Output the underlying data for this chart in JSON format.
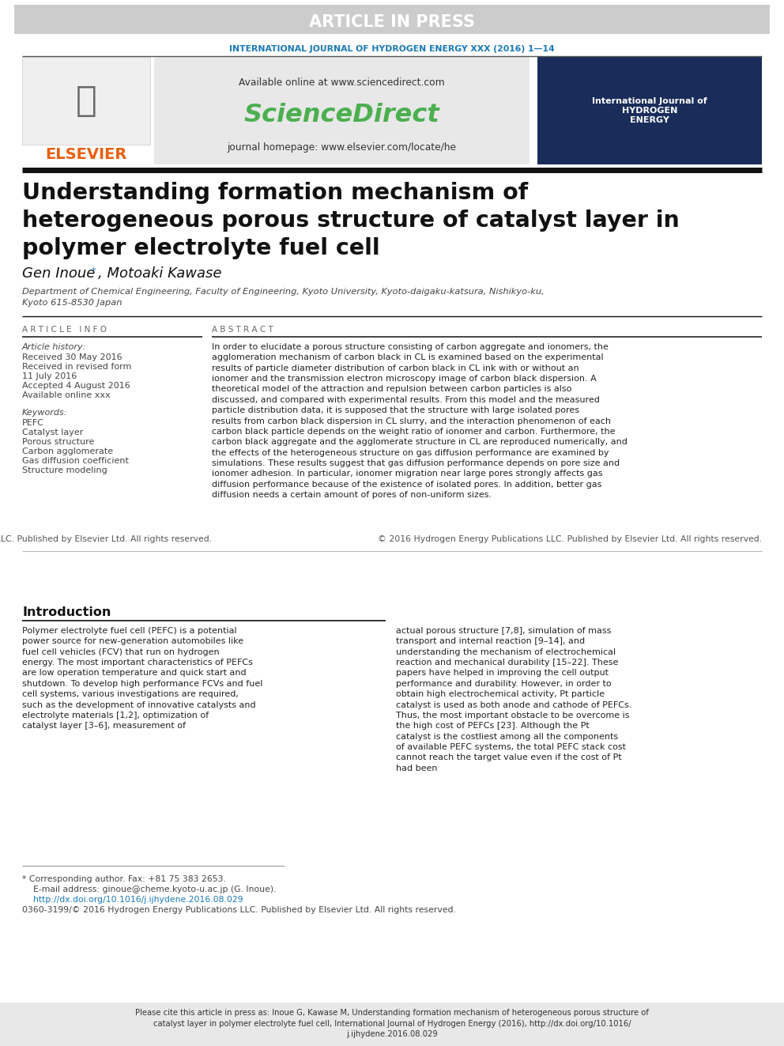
{
  "article_in_press_bg": "#cccccc",
  "article_in_press_text": "ARTICLE IN PRESS",
  "journal_name_text": "INTERNATIONAL JOURNAL OF HYDROGEN ENERGY XXX (2016) 1—14",
  "journal_name_color": "#1a7ab5",
  "available_online_text": "Available online at www.sciencedirect.com",
  "sciencedirect_text": "ScienceDirect",
  "sciencedirect_color": "#4caf50",
  "journal_homepage_text": "journal homepage: www.elsevier.com/locate/he",
  "elsevier_text": "ELSEVIER",
  "elsevier_color": "#e86010",
  "paper_title": "Understanding formation mechanism of\nheterogeneous porous structure of catalyst layer in\npolymer electrolyte fuel cell",
  "author_first": "Gen Inoue",
  "author_rest": ", Motoaki Kawase",
  "affiliation": "Department of Chemical Engineering, Faculty of Engineering, Kyoto University, Kyoto-daigaku-katsura, Nishikyo-ku,\nKyoto 615-8530 Japan",
  "article_info_title": "ARTICLE INFO",
  "abstract_title": "ABSTRACT",
  "article_history_label": "Article history:",
  "received_text": "Received 30 May 2016",
  "received_revised1": "Received in revised form",
  "received_revised2": "11 July 2016",
  "accepted_text": "Accepted 4 August 2016",
  "available_online_xxx": "Available online xxx",
  "keywords_title": "Keywords:",
  "keywords": [
    "PEFC",
    "Catalyst layer",
    "Porous structure",
    "Carbon agglomerate",
    "Gas diffusion coefficient",
    "Structure modeling"
  ],
  "abstract_text": "In order to elucidate a porous structure consisting of carbon aggregate and ionomers, the agglomeration mechanism of carbon black in CL is examined based on the experimental results of particle diameter distribution of carbon black in CL ink with or without an ionomer and the transmission electron microscopy image of carbon black dispersion. A theoretical model of the attraction and repulsion between carbon particles is also discussed, and compared with experimental results. From this model and the measured particle distribution data, it is supposed that the structure with large isolated pores results from carbon black dispersion in CL slurry, and the interaction phenomenon of each carbon black particle depends on the weight ratio of ionomer and carbon. Furthermore, the carbon black aggregate and the agglomerate structure in CL are reproduced numerically, and the effects of the heterogeneous structure on gas diffusion performance are examined by simulations. These results suggest that gas diffusion performance depends on pore size and ionomer adhesion. In particular, ionomer migration near large pores strongly affects gas diffusion performance because of the existence of isolated pores. In addition, better gas diffusion needs a certain amount of pores of non-uniform sizes.",
  "copyright_text": "© 2016 Hydrogen Energy Publications LLC. Published by Elsevier Ltd. All rights reserved.",
  "intro_title": "Introduction",
  "intro_text_left": "Polymer electrolyte fuel cell (PEFC) is a potential power source for new-generation automobiles like fuel cell vehicles (FCV) that run on hydrogen energy. The most important characteristics of PEFCs are low operation temperature and quick start and shutdown. To develop high performance FCVs and fuel cell systems, various investigations are required, such as the development of innovative catalysts and electrolyte materials [1,2], optimization of catalyst layer [3–6], measurement of",
  "intro_text_right": "actual porous structure [7,8], simulation of mass transport and internal reaction [9–14], and understanding the mechanism of electrochemical reaction and mechanical durability [15–22]. These papers have helped in improving the cell output performance and durability. However, in order to obtain high electrochemical activity, Pt particle catalyst is used as both anode and cathode of PEFCs. Thus, the most important obstacle to be overcome is the high cost of PEFCs [23]. Although the Pt catalyst is the costliest among all the components of available PEFC systems, the total PEFC stack cost cannot reach the target value even if the cost of Pt had been",
  "footnote1": "* Corresponding author. Fax: +81 75 383 2653.",
  "footnote2": "E-mail address: ginoue@cheme.kyoto-u.ac.jp (G. Inoue).",
  "footnote3": "http://dx.doi.org/10.1016/j.ijhydene.2016.08.029",
  "footnote4": "0360-3199/© 2016 Hydrogen Energy Publications LLC. Published by Elsevier Ltd. All rights reserved.",
  "cite_text": "Please cite this article in press as: Inoue G, Kawase M, Understanding formation mechanism of heterogeneous porous structure of\ncatalyst layer in polymer electrolyte fuel cell, International Journal of Hydrogen Energy (2016), http://dx.doi.org/10.1016/\nj.ijhydene.2016.08.029",
  "bg_color": "#ffffff",
  "url_color": "#1a7ab5",
  "text_dark": "#111111",
  "text_mid": "#333333",
  "cover_bg": "#1a2d5a"
}
